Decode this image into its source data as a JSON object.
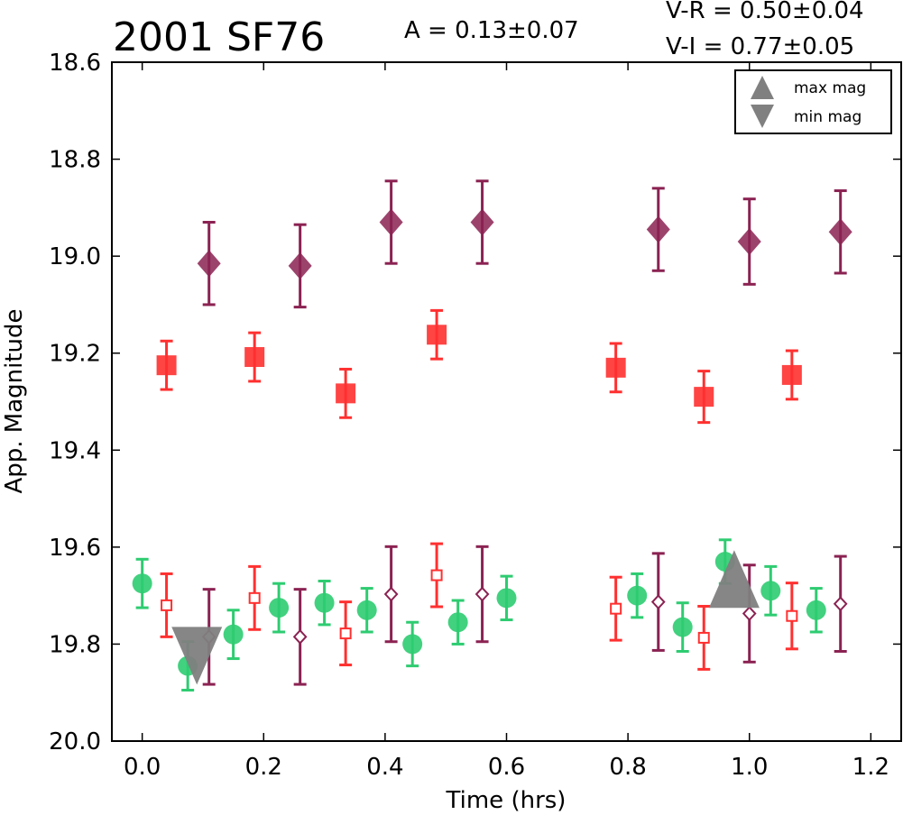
{
  "chart_data": {
    "type": "scatter",
    "title": "2001 SF76",
    "annotations": [
      "A  = 0.13±0.07",
      "V-R = 0.50±0.04",
      "V-I  = 0.77±0.05"
    ],
    "xlabel": "Time (hrs)",
    "ylabel": "App. Magnitude",
    "xlim": [
      -0.05,
      1.25
    ],
    "ylim": [
      20.0,
      18.6
    ],
    "y_inverted": true,
    "grid": false,
    "legend_position": "top-right",
    "xticks": [
      "0.0",
      "0.2",
      "0.4",
      "0.6",
      "0.8",
      "1.0",
      "1.2"
    ],
    "yticks": [
      "18.6",
      "18.8",
      "19.0",
      "19.2",
      "19.4",
      "19.6",
      "19.8",
      "20.0"
    ],
    "legend": [
      {
        "label": "max mag",
        "marker": "triangle-up"
      },
      {
        "label": "min mag",
        "marker": "triangle-down"
      }
    ],
    "series": [
      {
        "marker": "diamond-filled",
        "color": "#8b2252",
        "x": [
          0.11,
          0.26,
          0.41,
          0.56,
          0.85,
          1.0,
          1.15
        ],
        "y": [
          19.015,
          19.02,
          18.93,
          18.93,
          18.945,
          18.97,
          18.95
        ],
        "err": [
          0.085,
          0.085,
          0.085,
          0.085,
          0.085,
          0.088,
          0.085
        ]
      },
      {
        "marker": "square-filled",
        "color": "#ff3030",
        "x": [
          0.04,
          0.185,
          0.335,
          0.485,
          0.78,
          0.925,
          1.07
        ],
        "y": [
          19.225,
          19.208,
          19.283,
          19.162,
          19.23,
          19.29,
          19.245
        ],
        "err": [
          0.05,
          0.05,
          0.05,
          0.05,
          0.05,
          0.053,
          0.05
        ]
      },
      {
        "marker": "circle-filled",
        "color": "#2ecc71",
        "x": [
          0.0,
          0.075,
          0.15,
          0.225,
          0.3,
          0.37,
          0.445,
          0.52,
          0.6,
          0.815,
          0.89,
          0.96,
          1.035,
          1.11
        ],
        "y": [
          19.675,
          19.845,
          19.78,
          19.725,
          19.715,
          19.73,
          19.8,
          19.755,
          19.705,
          19.7,
          19.765,
          19.63,
          19.69,
          19.73
        ],
        "err": [
          0.05,
          0.05,
          0.05,
          0.05,
          0.045,
          0.045,
          0.045,
          0.045,
          0.045,
          0.045,
          0.05,
          0.045,
          0.05,
          0.045
        ]
      },
      {
        "marker": "square-open",
        "color": "#ff3030",
        "x": [
          0.04,
          0.185,
          0.335,
          0.485,
          0.78,
          0.925,
          1.07
        ],
        "y": [
          19.72,
          19.705,
          19.778,
          19.658,
          19.727,
          19.787,
          19.742
        ],
        "err": [
          0.065,
          0.065,
          0.065,
          0.065,
          0.065,
          0.065,
          0.068
        ]
      },
      {
        "marker": "diamond-open",
        "color": "#8b2252",
        "x": [
          0.11,
          0.26,
          0.41,
          0.56,
          0.85,
          1.0,
          1.15
        ],
        "y": [
          19.785,
          19.785,
          19.697,
          19.697,
          19.713,
          19.737,
          19.717
        ],
        "err": [
          0.098,
          0.098,
          0.098,
          0.098,
          0.1,
          0.1,
          0.098
        ]
      }
    ],
    "extrema": [
      {
        "type": "min",
        "x": 0.09,
        "y": 19.8
      },
      {
        "type": "max",
        "x": 0.975,
        "y": 19.69
      }
    ]
  }
}
